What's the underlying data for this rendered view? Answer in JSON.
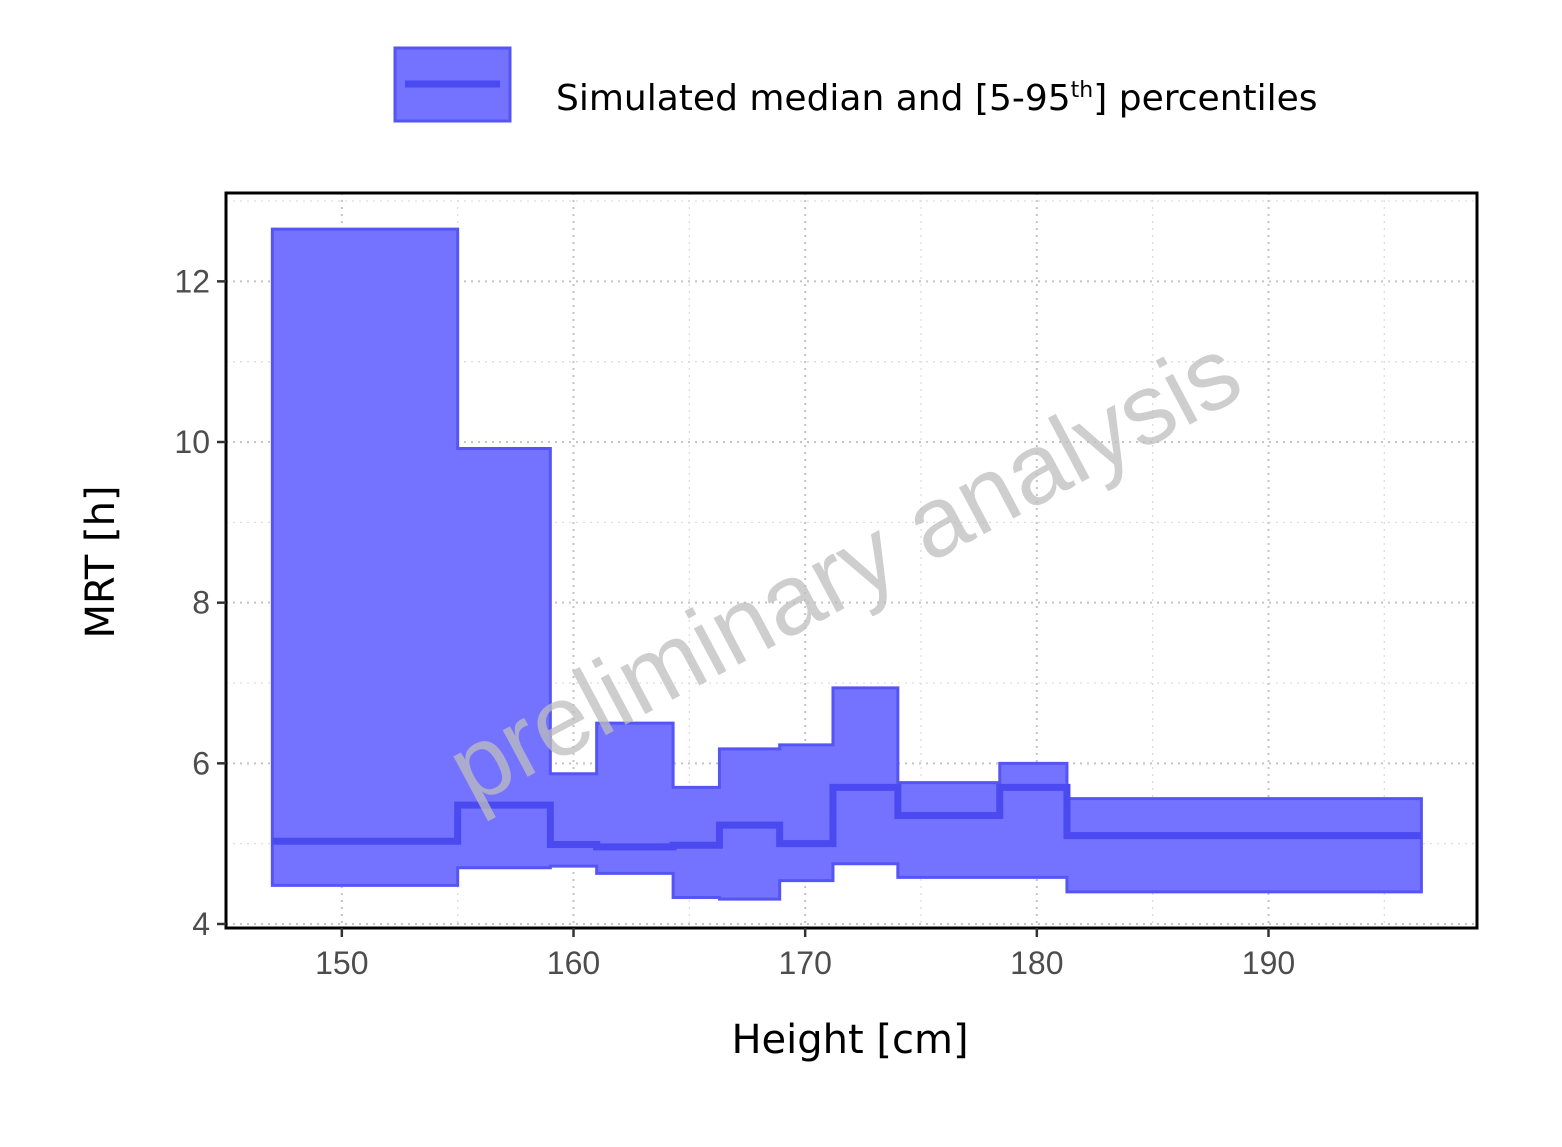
{
  "chart_data": {
    "type": "area",
    "xlabel": "Height [cm]",
    "ylabel": "MRT [h]",
    "xlim": [
      145,
      199
    ],
    "ylim": [
      3.95,
      13.1
    ],
    "x_ticks": [
      150,
      160,
      170,
      180,
      190
    ],
    "y_ticks": [
      4,
      6,
      8,
      10,
      12
    ],
    "grid": true,
    "legend": {
      "placement": "top",
      "label_main": "Simulated median and [5-95",
      "label_sup": "th",
      "label_end": "] percentiles"
    },
    "watermark": "preliminary analysis",
    "colors": {
      "band_fill": "#7373ff",
      "band_edge": "#5555f5",
      "median": "#4a4af0"
    },
    "bins": [
      {
        "x0": 147.0,
        "x1": 155.0,
        "p5": 4.48,
        "median": 5.03,
        "p95": 12.65
      },
      {
        "x0": 155.0,
        "x1": 159.0,
        "p5": 4.7,
        "median": 5.48,
        "p95": 9.92
      },
      {
        "x0": 159.0,
        "x1": 161.0,
        "p5": 4.72,
        "median": 4.99,
        "p95": 5.87
      },
      {
        "x0": 161.0,
        "x1": 164.3,
        "p5": 4.63,
        "median": 4.96,
        "p95": 6.5
      },
      {
        "x0": 164.3,
        "x1": 166.3,
        "p5": 4.33,
        "median": 4.98,
        "p95": 5.7
      },
      {
        "x0": 166.3,
        "x1": 168.9,
        "p5": 4.31,
        "median": 5.23,
        "p95": 6.18
      },
      {
        "x0": 168.9,
        "x1": 171.2,
        "p5": 4.54,
        "median": 5.0,
        "p95": 6.23
      },
      {
        "x0": 171.2,
        "x1": 174.0,
        "p5": 4.75,
        "median": 5.7,
        "p95": 6.94
      },
      {
        "x0": 174.0,
        "x1": 178.4,
        "p5": 4.58,
        "median": 5.35,
        "p95": 5.76
      },
      {
        "x0": 178.4,
        "x1": 181.3,
        "p5": 4.58,
        "median": 5.7,
        "p95": 6.0
      },
      {
        "x0": 181.3,
        "x1": 196.6,
        "p5": 4.4,
        "median": 5.1,
        "p95": 5.56
      }
    ]
  }
}
